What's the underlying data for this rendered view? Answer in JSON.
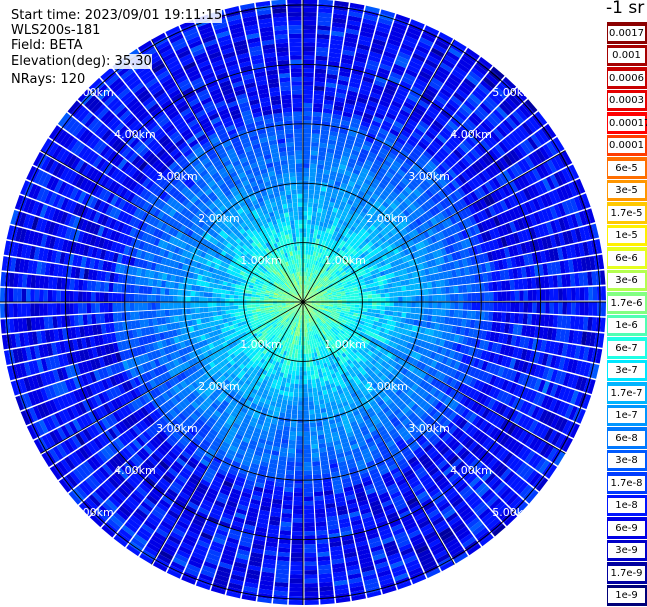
{
  "info": {
    "start_time": "Start time: 2023/09/01 19:11:15",
    "instrument": "WLS200s-181",
    "field": "Field: BETA",
    "elevation": "Elevation(deg): 35.30",
    "nrays": "NRays: 120"
  },
  "colorbar": {
    "unit": "-1 sr",
    "labels": [
      "0.0017",
      "0.001",
      "0.0006",
      "0.0003",
      "0.00017",
      "0.0001",
      "6e-5",
      "3e-5",
      "1.7e-5",
      "1e-5",
      "6e-6",
      "3e-6",
      "1.7e-6",
      "1e-6",
      "6e-7",
      "3e-7",
      "1.7e-7",
      "1e-7",
      "6e-8",
      "3e-8",
      "1.7e-8",
      "1e-8",
      "6e-9",
      "3e-9",
      "1.7e-9",
      "1e-9"
    ],
    "colors": [
      "#8b0000",
      "#a50000",
      "#c80000",
      "#e60000",
      "#ff0000",
      "#ff3c00",
      "#ff6e00",
      "#ff9600",
      "#ffc800",
      "#fff000",
      "#e6ff1e",
      "#b4ff50",
      "#82ff82",
      "#50ffb4",
      "#1effe6",
      "#00e6ff",
      "#00b4ff",
      "#0096ff",
      "#0078ff",
      "#005aff",
      "#003cff",
      "#0014ff",
      "#0000e6",
      "#0000c8",
      "#0000a0",
      "#000078"
    ]
  },
  "chart_data": {
    "type": "heatmap",
    "projection": "polar PPI",
    "n_rays": 120,
    "range_rings_km": [
      1,
      2,
      3,
      4,
      5
    ],
    "ring_labels": [
      "1.00km",
      "2.00km",
      "3.00km",
      "4.00km",
      "5.00km"
    ],
    "max_range_km": 5.1,
    "value_scale": "log",
    "value_range": [
      1e-09,
      0.0017
    ],
    "near_range_beta": 2e-06,
    "far_range_beta": 2e-08,
    "spoke_count": 12
  }
}
